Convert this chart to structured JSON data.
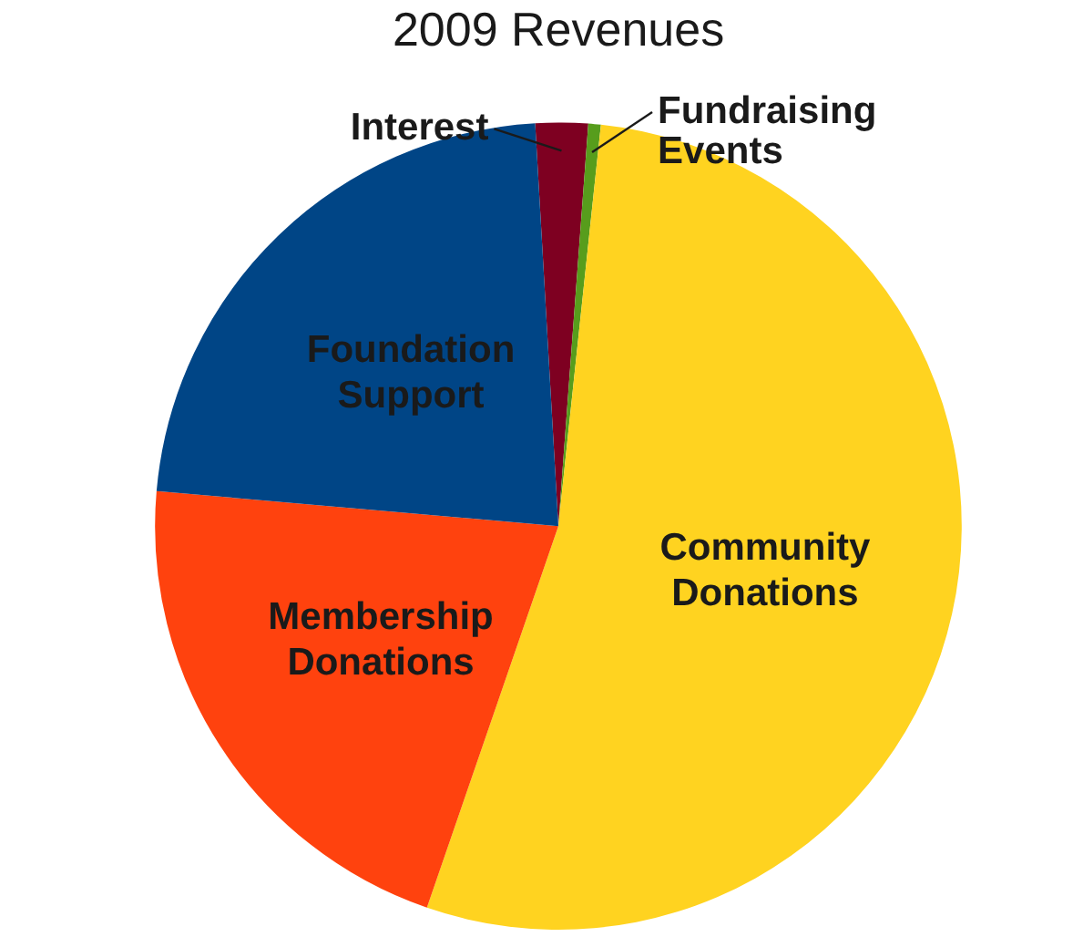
{
  "chart_data": {
    "type": "pie",
    "title": "2009 Revenues",
    "categories": [
      "Interest",
      "Fundraising Events",
      "Community Donations",
      "Membership Donations",
      "Foundation Support"
    ],
    "values": [
      2.1,
      0.5,
      53.6,
      21.1,
      22.7
    ],
    "colors": [
      "#7e0021",
      "#579d1c",
      "#ffd320",
      "#ff420e",
      "#004586"
    ],
    "legend": false
  }
}
